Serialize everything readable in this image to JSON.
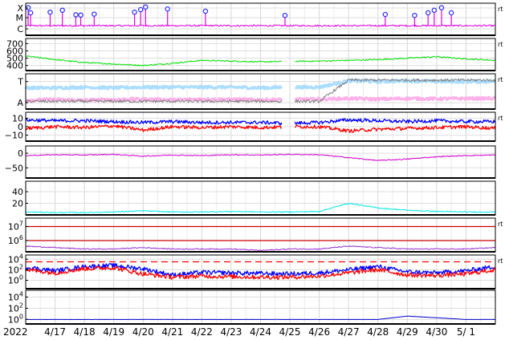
{
  "figure": {
    "year_label": "2022"
  },
  "chart_data": {
    "type": "line",
    "x_axis": {
      "start": "2022-04-16",
      "end": "2022-05-02",
      "tick_labels": [
        "4/17",
        "4/18",
        "4/19",
        "4/20",
        "4/21",
        "4/22",
        "4/23",
        "4/24",
        "4/25",
        "4/26",
        "4/27",
        "4/28",
        "4/29",
        "4/30",
        "5/ 1"
      ],
      "grid": true
    },
    "panels": [
      {
        "id": "xray-class",
        "y_tick_labels": [
          "X",
          "M",
          "C"
        ],
        "y_ticks": [
          0.85,
          0.55,
          0.2
        ],
        "ylim": [
          0,
          1
        ],
        "right_label": "rt",
        "series": [
          {
            "color": "#e000e0",
            "baseline": 0.3
          }
        ],
        "flare_markers": [
          {
            "x": "2022-04-16 02:00",
            "y": 0.86
          },
          {
            "x": "2022-04-16 04:00",
            "y": 0.7
          },
          {
            "x": "2022-04-16 20:00",
            "y": 0.72
          },
          {
            "x": "2022-04-17 06:00",
            "y": 0.78
          },
          {
            "x": "2022-04-17 17:00",
            "y": 0.64
          },
          {
            "x": "2022-04-17 21:00",
            "y": 0.63
          },
          {
            "x": "2022-04-18 08:00",
            "y": 0.66
          },
          {
            "x": "2022-04-19 17:00",
            "y": 0.72
          },
          {
            "x": "2022-04-19 22:00",
            "y": 0.8
          },
          {
            "x": "2022-04-20 02:00",
            "y": 0.88
          },
          {
            "x": "2022-04-20 20:00",
            "y": 0.82
          },
          {
            "x": "2022-04-22 03:00",
            "y": 0.75
          },
          {
            "x": "2022-04-24 20:00",
            "y": 0.62
          },
          {
            "x": "2022-04-28 06:00",
            "y": 0.65
          },
          {
            "x": "2022-04-29 06:00",
            "y": 0.62
          },
          {
            "x": "2022-04-29 17:00",
            "y": 0.7
          },
          {
            "x": "2022-04-29 22:00",
            "y": 0.78
          },
          {
            "x": "2022-04-30 04:00",
            "y": 0.86
          },
          {
            "x": "2022-04-30 12:00",
            "y": 0.7
          }
        ]
      },
      {
        "id": "solar-wind-speed",
        "y_tick_labels": [
          "700",
          "600",
          "500",
          "400"
        ],
        "y_ticks": [
          700,
          600,
          500,
          400
        ],
        "ylim": [
          330,
          770
        ],
        "right_label": "rt",
        "series": [
          {
            "color": "#00e000",
            "values": [
              530,
              480,
              440,
              420,
              400,
              430,
              470,
              460,
              450,
              455,
              460,
              470,
              480,
              500,
              520,
              490,
              470
            ]
          }
        ]
      },
      {
        "id": "density-temperature",
        "y_tick_labels": [
          "T",
          "A"
        ],
        "y_ticks": [
          0.78,
          0.18
        ],
        "ylim": [
          0,
          1
        ],
        "right_label": "rt",
        "series": [
          {
            "color": "#aaddff",
            "values": [
              0.6,
              0.6,
              0.62,
              0.6,
              0.62,
              0.62,
              0.62,
              0.62,
              0.6,
              0.62,
              0.62,
              0.8,
              0.78,
              0.8,
              0.78,
              0.78,
              0.78
            ]
          },
          {
            "color": "#ffb0e8",
            "values": [
              0.25,
              0.27,
              0.25,
              0.27,
              0.28,
              0.26,
              0.28,
              0.27,
              0.26,
              0.27,
              0.28,
              0.3,
              0.28,
              0.3,
              0.29,
              0.3,
              0.3
            ]
          },
          {
            "color": "#808080",
            "values": [
              0.22,
              0.22,
              0.22,
              0.22,
              0.22,
              0.22,
              0.22,
              0.22,
              0.22,
              0.22,
              0.22,
              0.82,
              0.82,
              0.82,
              0.82,
              0.82,
              0.82
            ]
          }
        ]
      },
      {
        "id": "imf-bt-bz",
        "y_tick_labels": [
          "10",
          "0",
          "−10"
        ],
        "y_ticks": [
          10,
          0,
          -10
        ],
        "ylim": [
          -17,
          17
        ],
        "right_label": "rt",
        "series": [
          {
            "color": "#0000ff",
            "values": [
              8,
              7,
              7,
              6,
              5,
              6,
              5,
              5,
              5,
              4,
              5,
              8,
              7,
              6,
              7,
              6,
              6
            ]
          },
          {
            "color": "#ff0000",
            "values": [
              -2,
              0,
              -1,
              1,
              -4,
              0,
              -1,
              0,
              -1,
              0,
              0,
              -5,
              -3,
              -2,
              -1,
              0,
              -2
            ]
          }
        ]
      },
      {
        "id": "dst",
        "y_tick_labels": [
          "0",
          "−50"
        ],
        "y_ticks": [
          0,
          -50
        ],
        "ylim": [
          -85,
          25
        ],
        "series": [
          {
            "color": "#cc00cc",
            "values": [
              -8,
              -5,
              -6,
              -4,
              -10,
              -6,
              -8,
              -5,
              -6,
              -4,
              -5,
              -15,
              -25,
              -20,
              -12,
              -8,
              -6
            ]
          }
        ]
      },
      {
        "id": "aurora-power",
        "y_tick_labels": [
          "40",
          "20"
        ],
        "y_ticks": [
          40,
          20
        ],
        "ylim": [
          0,
          58
        ],
        "series": [
          {
            "color": "#00e8e8",
            "values": [
              5,
              4,
              4,
              5,
              7,
              5,
              5,
              6,
              5,
              5,
              6,
              20,
              12,
              8,
              6,
              5,
              5
            ]
          }
        ]
      },
      {
        "id": "proton-flux",
        "y_tick_labels": [
          "10^7",
          "10^6"
        ],
        "y_ticks": [
          7,
          6
        ],
        "ylim": [
          5.2,
          7.6
        ],
        "log_scale": true,
        "right_label": "rt",
        "thresholds": [
          {
            "value": 7,
            "color": "#cc0000"
          },
          {
            "value": 6,
            "color": "#cc0000"
          }
        ],
        "series": [
          {
            "color": "#9933cc",
            "values": [
              5.6,
              5.5,
              5.4,
              5.4,
              5.5,
              5.4,
              5.4,
              5.4,
              5.3,
              5.4,
              5.4,
              5.6,
              5.5,
              5.4,
              5.4,
              5.4,
              5.5
            ]
          }
        ]
      },
      {
        "id": "electron-flux",
        "y_tick_labels": [
          "10^4",
          "10^2",
          "10^0"
        ],
        "y_ticks": [
          4,
          2,
          0
        ],
        "ylim": [
          -1.6,
          4.8
        ],
        "log_scale": true,
        "right_label": "rt",
        "thresholds": [
          {
            "value": 3.5,
            "color": "#ff0000",
            "dashed": true
          }
        ],
        "series": [
          {
            "color": "#0000ff",
            "values": [
              2.5,
              1.8,
              2.6,
              2.8,
              2.2,
              1.0,
              1.5,
              1.4,
              1.3,
              1.2,
              1.4,
              2.0,
              2.6,
              1.6,
              1.4,
              1.8,
              2.6
            ]
          },
          {
            "color": "#ff0000",
            "values": [
              2.0,
              1.4,
              2.2,
              2.4,
              1.2,
              0.6,
              0.8,
              0.7,
              0.6,
              0.6,
              0.8,
              1.4,
              2.0,
              1.0,
              0.9,
              1.2,
              2.0
            ]
          }
        ]
      },
      {
        "id": "neutron",
        "y_tick_labels": [
          "10^4",
          "10^2",
          "10^0"
        ],
        "y_ticks": [
          4,
          2,
          0
        ],
        "ylim": [
          -0.8,
          5.2
        ],
        "log_scale": true,
        "series": [
          {
            "color": "#0000cc",
            "values": [
              0,
              0,
              0,
              0,
              0,
              0,
              0,
              0,
              0,
              0,
              0,
              0,
              0,
              0.6,
              0.3,
              0,
              0
            ]
          }
        ]
      }
    ]
  }
}
